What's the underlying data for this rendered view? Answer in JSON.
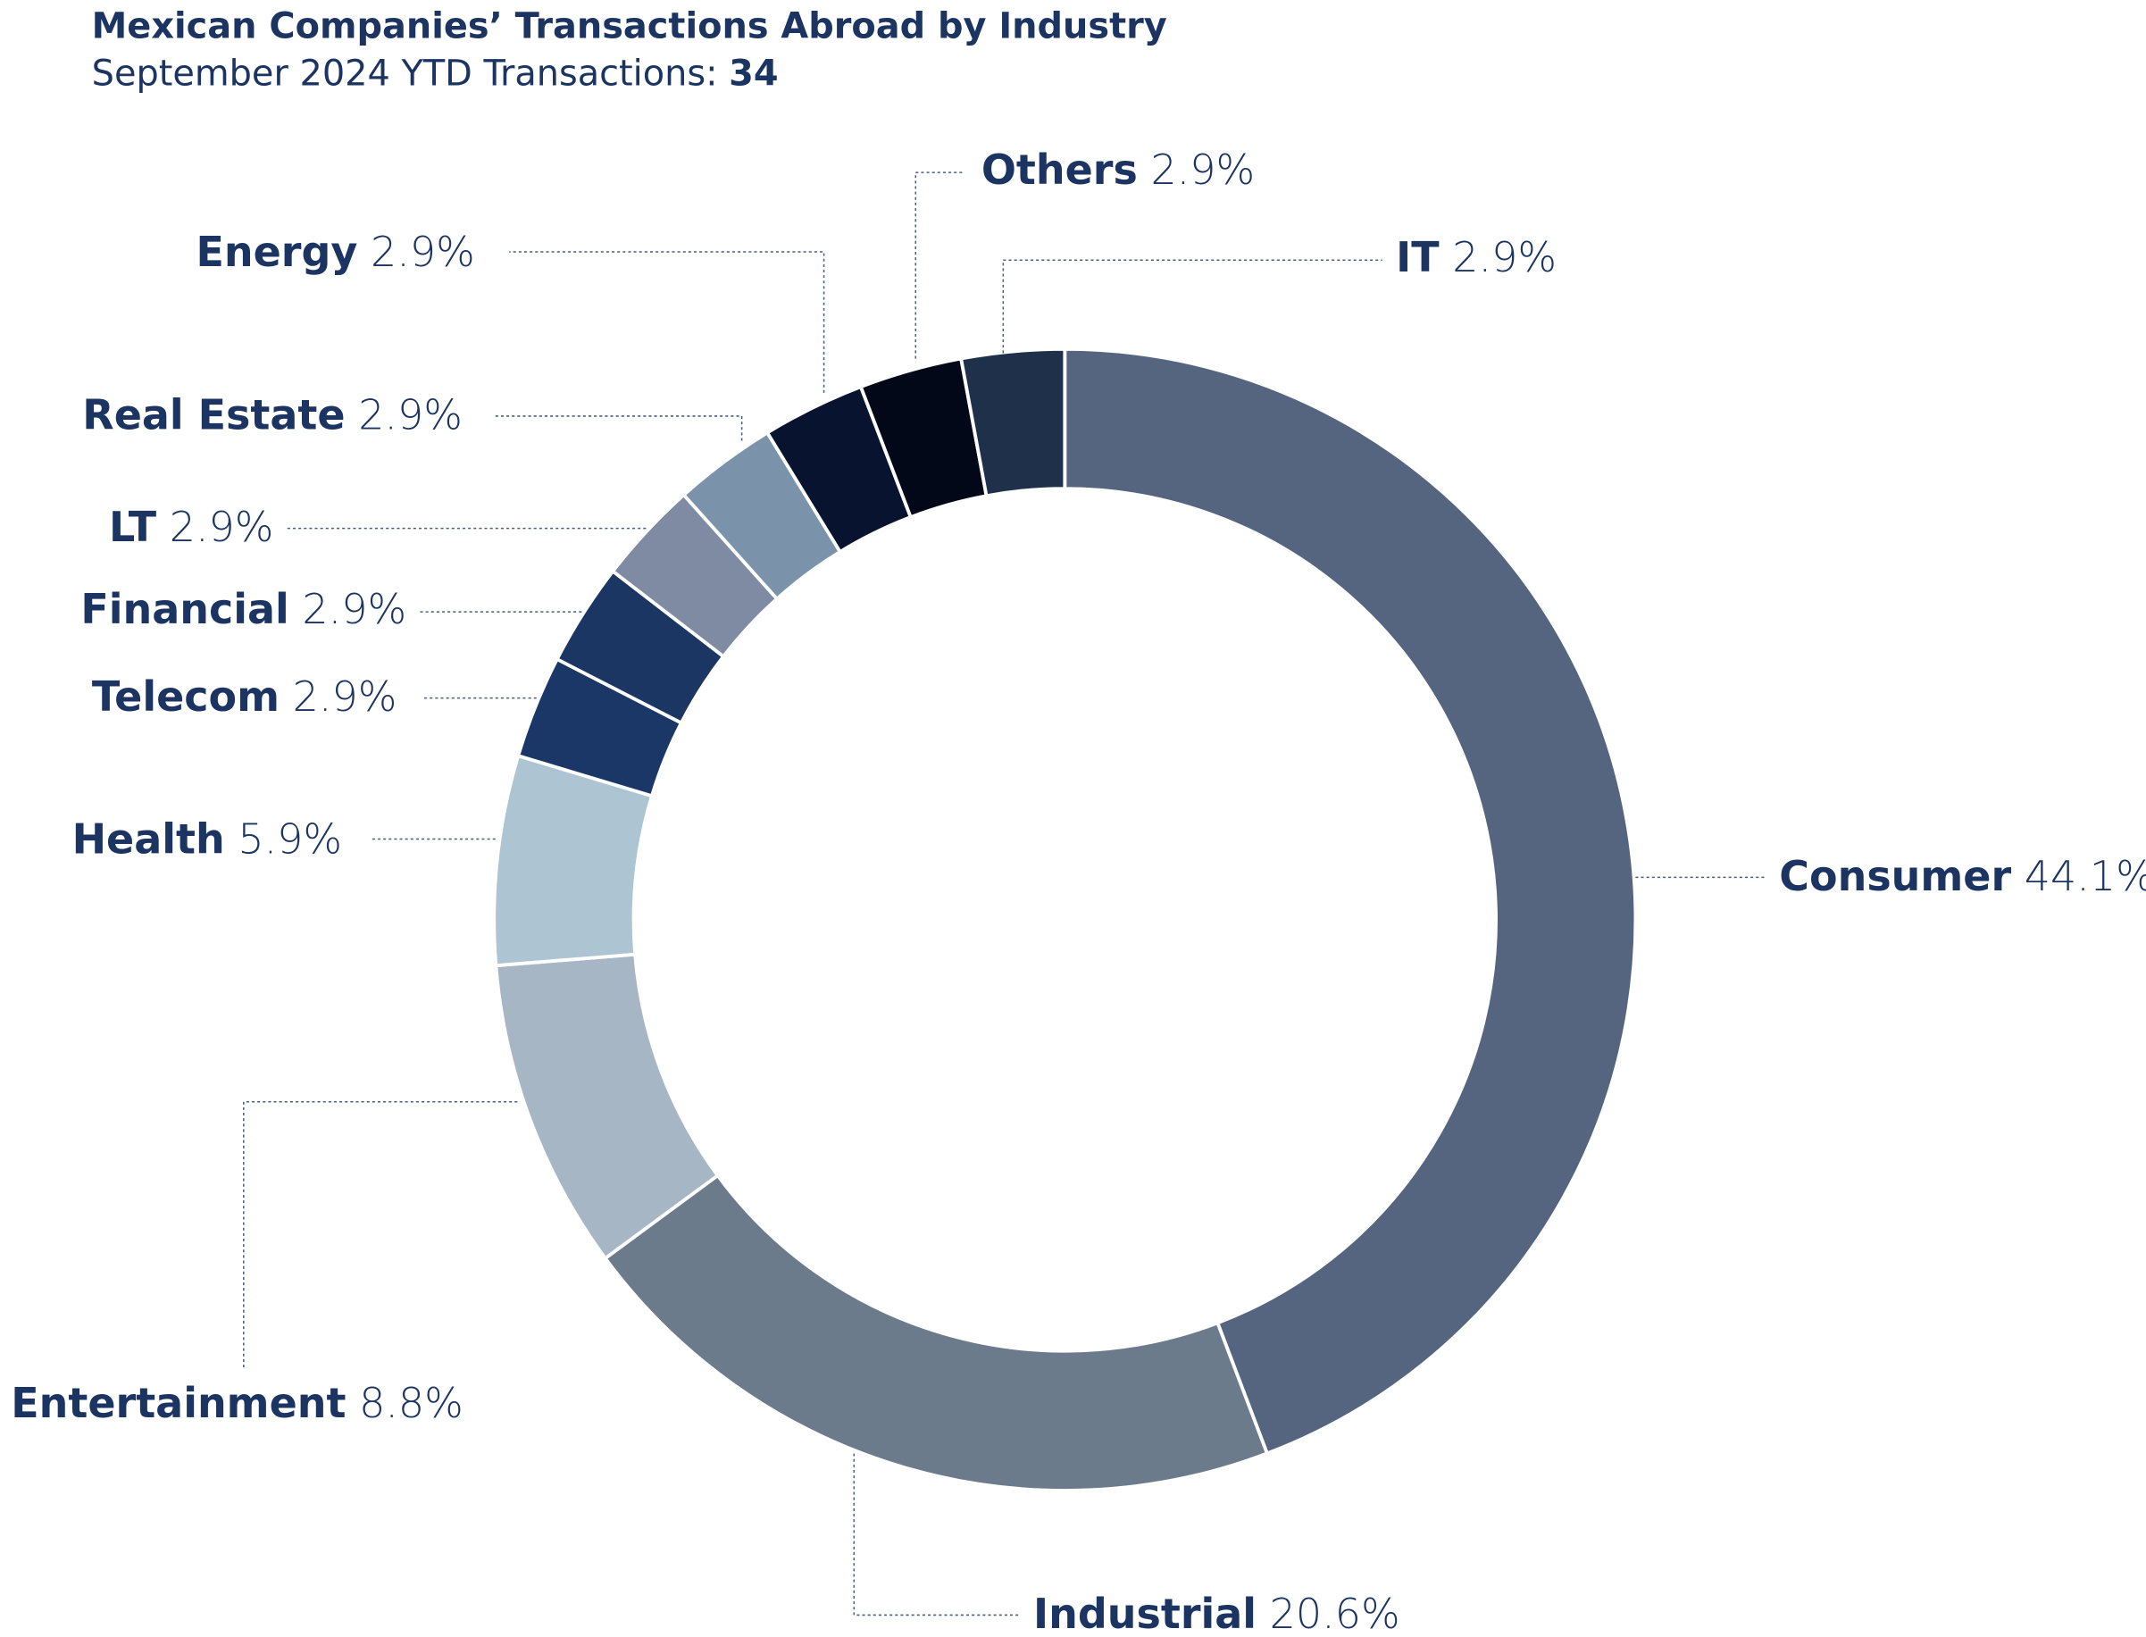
{
  "chart_data": {
    "type": "donut",
    "title": "Mexican Companies’ Transactions Abroad by Industry",
    "subtitle": "September 2024 YTD Transactions:",
    "total": 34,
    "categories": [
      "Consumer",
      "Industrial",
      "Entertainment",
      "Health",
      "Telecom",
      "Financial",
      "LT",
      "Real Estate",
      "Energy",
      "Others",
      "IT"
    ],
    "values": [
      44.1,
      20.6,
      8.8,
      5.9,
      2.9,
      2.9,
      2.9,
      2.9,
      2.9,
      2.9,
      2.9
    ],
    "value_labels": [
      "44.1%",
      "20.6%",
      "8.8%",
      "5.9%",
      "2.9%",
      "2.9%",
      "2.9%",
      "2.9%",
      "2.9%",
      "2.9%",
      "2.9%"
    ],
    "colors": [
      "#55657f",
      "#6b7b8c",
      "#a7b6c5",
      "#adc4d3",
      "#1b3768",
      "#1c3664",
      "#7f8aa3",
      "#7a93ab",
      "#08142f",
      "#020817",
      "#1e304a"
    ]
  }
}
